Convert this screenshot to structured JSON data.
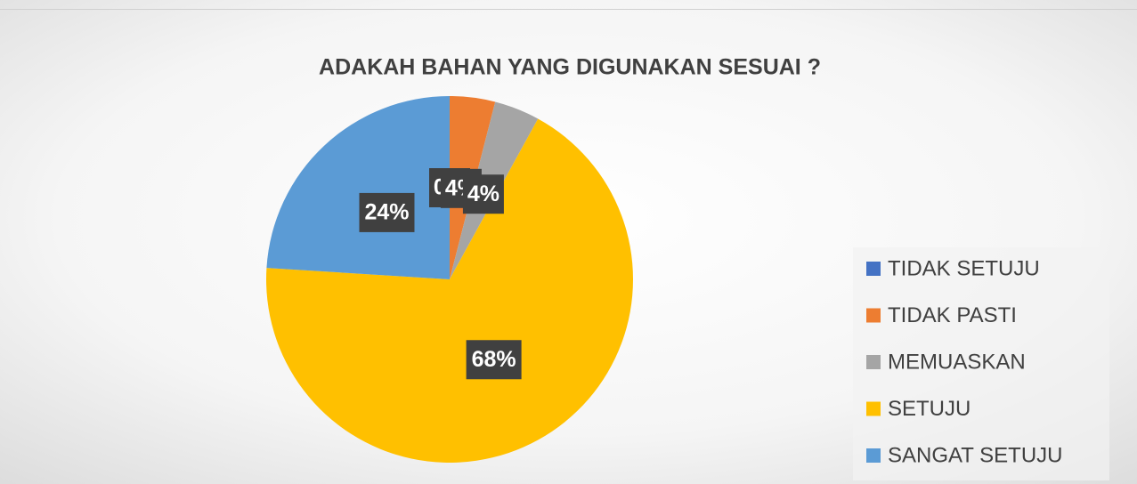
{
  "chart_data": {
    "type": "pie",
    "title": "ADAKAH BAHAN YANG DIGUNAKAN SESUAI ?",
    "categories": [
      "TIDAK SETUJU",
      "TIDAK PASTI",
      "MEMUASKAN",
      "SETUJU",
      "SANGAT SETUJU"
    ],
    "values": [
      0,
      4,
      4,
      68,
      24
    ],
    "value_labels": [
      "0%",
      "4%",
      "4%",
      "68%",
      "24%"
    ],
    "colors": [
      "#4472c4",
      "#ed7d31",
      "#a5a5a5",
      "#ffc000",
      "#5b9bd5"
    ],
    "legend": "right"
  }
}
